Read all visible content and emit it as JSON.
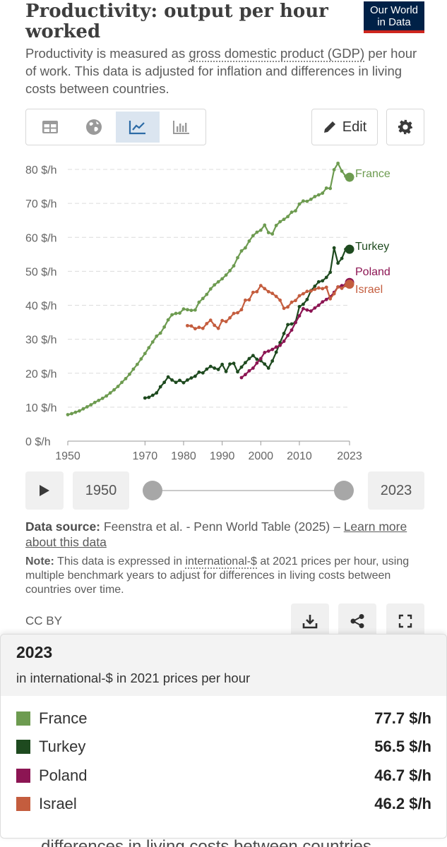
{
  "header": {
    "title": "Productivity: output per hour worked",
    "logo_line1": "Our World",
    "logo_line2": "in Data",
    "subtitle_before": "Productivity is measured as ",
    "subtitle_link": "gross domestic product (GDP)",
    "subtitle_after": " per hour of work. This data is adjusted for inflation and differences in living costs between countries."
  },
  "toolbar": {
    "tabs": [
      {
        "name": "table",
        "icon": "table-icon",
        "active": false
      },
      {
        "name": "map",
        "icon": "globe-icon",
        "active": false
      },
      {
        "name": "line-chart",
        "icon": "line-chart-icon",
        "active": true
      },
      {
        "name": "bar-chart",
        "icon": "bar-chart-icon",
        "active": false
      }
    ],
    "edit_label": "Edit",
    "edit_icon": "pencil-icon",
    "settings_icon": "gear-icon"
  },
  "timeline": {
    "start": "1950",
    "end": "2023",
    "play_icon": "play-icon"
  },
  "source": {
    "label": "Data source:",
    "text": " Feenstra et al. - Penn World Table (2025) – ",
    "link": "Learn more about this data"
  },
  "note": {
    "label": "Note:",
    "before": " This data is expressed in ",
    "link": "international-$",
    "after": " at 2021 prices per hour, using multiple benchmark years to adjust for differences in living costs between countries over time."
  },
  "footer": {
    "license": "CC BY",
    "download_icon": "download-icon",
    "share_icon": "share-icon",
    "fullscreen_icon": "fullscreen-icon"
  },
  "tooltip": {
    "year": "2023",
    "unit": "in international-$ in 2021 prices per hour",
    "rows": [
      {
        "name": "France",
        "value": "77.7 $/h",
        "color": "#6d9b50"
      },
      {
        "name": "Turkey",
        "value": "56.5 $/h",
        "color": "#1e4a1f"
      },
      {
        "name": "Poland",
        "value": "46.7 $/h",
        "color": "#8c1553"
      },
      {
        "name": "Israel",
        "value": "46.2 $/h",
        "color": "#c45d3e"
      }
    ]
  },
  "cutoff_text": "differences in living costs between countries",
  "chart_data": {
    "type": "line",
    "title": "Productivity: output per hour worked",
    "ylabel": "",
    "xlabel": "",
    "xlim": [
      1950,
      2023
    ],
    "ylim": [
      0,
      80
    ],
    "x_ticks": [
      1950,
      1970,
      1980,
      1990,
      2000,
      2010,
      2023
    ],
    "y_ticks": [
      0,
      10,
      20,
      30,
      40,
      50,
      60,
      70,
      80
    ],
    "y_tick_labels": [
      "0 $/h",
      "10 $/h",
      "20 $/h",
      "30 $/h",
      "40 $/h",
      "50 $/h",
      "60 $/h",
      "70 $/h",
      "80 $/h"
    ],
    "grid": true,
    "series": [
      {
        "name": "France",
        "color": "#6d9b50",
        "start_year": 1950,
        "values": [
          7.8,
          8.1,
          8.5,
          8.9,
          9.5,
          10.1,
          10.7,
          11.4,
          12.0,
          12.6,
          13.3,
          14.2,
          15.1,
          16.1,
          17.3,
          18.4,
          19.7,
          21.2,
          22.6,
          24.2,
          25.8,
          27.5,
          29.2,
          30.9,
          31.8,
          33.6,
          35.7,
          37.2,
          37.6,
          37.7,
          38.9,
          38.7,
          38.5,
          38.6,
          40.9,
          42.0,
          43.2,
          44.8,
          46.0,
          46.9,
          47.8,
          48.9,
          50.2,
          51.6,
          54.0,
          56.0,
          56.9,
          58.9,
          60.5,
          61.5,
          62.1,
          63.6,
          61.4,
          61.0,
          63.5,
          64.6,
          65.3,
          66.1,
          67.4,
          67.8,
          69.8,
          70.7,
          70.6,
          71.2,
          72.0,
          72.5,
          73.0,
          74.5,
          74.4,
          79.9,
          81.8,
          79.5,
          78.0,
          77.7
        ]
      },
      {
        "name": "Turkey",
        "color": "#1e4a1f",
        "start_year": 1970,
        "values": [
          12.7,
          12.9,
          13.5,
          14.2,
          16.0,
          17.3,
          18.9,
          18.0,
          17.3,
          17.9,
          17.2,
          18.0,
          18.6,
          19.1,
          20.3,
          20.1,
          21.2,
          22.0,
          21.5,
          21.1,
          22.6,
          20.5,
          22.7,
          22.9,
          20.4,
          21.8,
          23.1,
          24.3,
          25.2,
          24.1,
          23.7,
          22.7,
          21.5,
          23.6,
          26.2,
          29.0,
          31.7,
          34.3,
          34.5,
          35.0,
          39.6,
          40.3,
          41.7,
          44.3,
          45.6,
          46.9,
          47.2,
          48.2,
          49.7,
          56.9,
          52.4,
          53.8,
          56.5,
          56.5
        ]
      },
      {
        "name": "Poland",
        "color": "#8c1553",
        "start_year": 1995,
        "values": [
          18.7,
          19.6,
          20.7,
          21.5,
          23.0,
          24.3,
          26.1,
          26.5,
          27.0,
          27.7,
          28.2,
          29.4,
          31.1,
          32.7,
          34.9,
          36.9,
          39.0,
          38.6,
          38.3,
          39.2,
          40.0,
          41.0,
          41.7,
          42.5,
          43.8,
          45.4,
          45.8,
          46.1,
          46.7
        ]
      },
      {
        "name": "Israel",
        "color": "#c45d3e",
        "start_year": 1981,
        "values": [
          34.0,
          33.9,
          33.1,
          33.5,
          33.2,
          34.6,
          35.6,
          34.1,
          33.2,
          35.5,
          35.2,
          36.3,
          37.6,
          37.8,
          38.7,
          41.5,
          41.6,
          43.8,
          44.0,
          45.8,
          44.9,
          44.0,
          43.5,
          42.6,
          41.5,
          39.1,
          39.5,
          40.9,
          41.4,
          42.8,
          43.4,
          44.1,
          44.2,
          44.7,
          45.1,
          44.9,
          45.3,
          41.9,
          43.4,
          45.4,
          45.0,
          45.8,
          46.2
        ]
      }
    ]
  }
}
